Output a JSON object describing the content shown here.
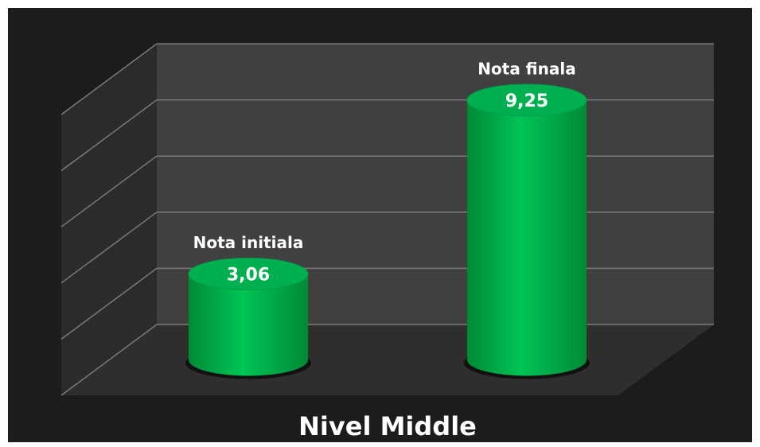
{
  "chart_data": {
    "type": "bar3d",
    "title": "Nivel Middle",
    "categories": [
      "Nota initiala",
      "Nota finala"
    ],
    "values": [
      3.06,
      9.25
    ],
    "value_labels": [
      "3,06",
      "9,25"
    ],
    "color": "#00b050",
    "ylim": [
      0,
      10
    ],
    "yticks": [
      0,
      2,
      4,
      6,
      8,
      10
    ],
    "grid": true
  }
}
